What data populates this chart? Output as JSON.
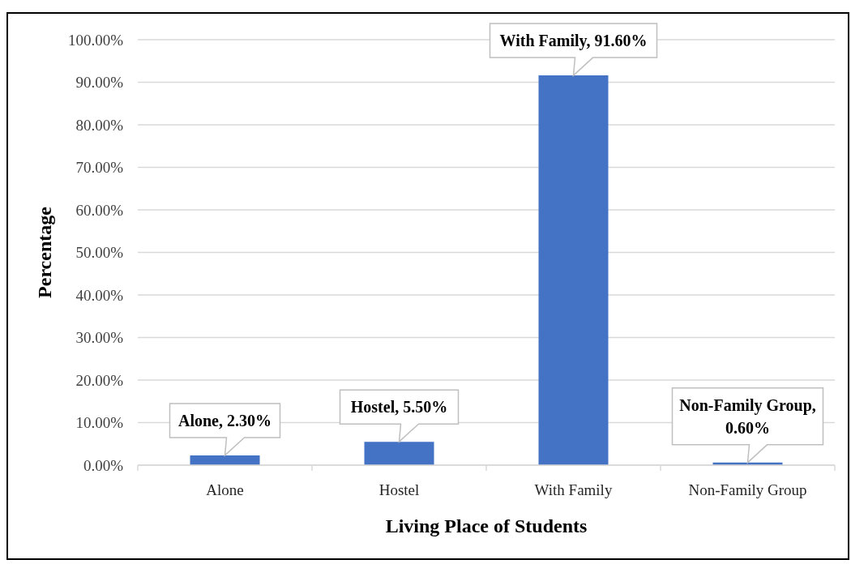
{
  "chart_data": {
    "type": "bar",
    "xlabel": "Living Place of Students",
    "ylabel": "Percentage",
    "categories": [
      "Alone",
      "Hostel",
      "With Family",
      "Non-Family Group"
    ],
    "values": [
      2.3,
      5.5,
      91.6,
      0.6
    ],
    "color": "#4472c4",
    "value_labels": [
      "Alone, 2.30%",
      "Hostel, 5.50%",
      "With Family, 91.60%",
      "Non-Family Group, 0.60%"
    ],
    "ylim": [
      0,
      100
    ],
    "yticks": [
      {
        "value": 0,
        "label": "0.00%"
      },
      {
        "value": 10,
        "label": "10.00%"
      },
      {
        "value": 20,
        "label": "20.00%"
      },
      {
        "value": 30,
        "label": "30.00%"
      },
      {
        "value": 40,
        "label": "40.00%"
      },
      {
        "value": 50,
        "label": "50.00%"
      },
      {
        "value": 60,
        "label": "60.00%"
      },
      {
        "value": 70,
        "label": "70.00%"
      },
      {
        "value": 80,
        "label": "80.00%"
      },
      {
        "value": 90,
        "label": "90.00%"
      },
      {
        "value": 100,
        "label": "100.00%"
      }
    ],
    "grid": "y"
  }
}
